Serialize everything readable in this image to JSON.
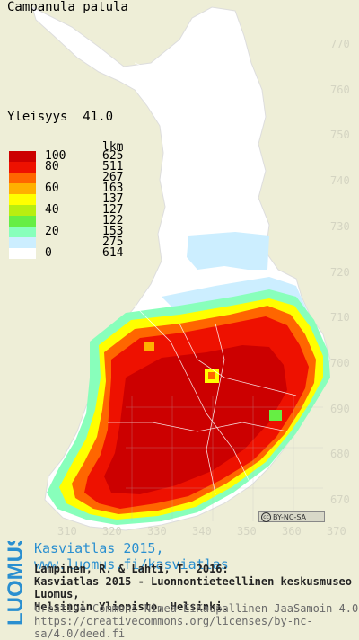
{
  "title": "Campanula patula",
  "frequency": "Yleisyys  41.0",
  "legend": {
    "count_header": "lkm",
    "rows": [
      {
        "label": "100",
        "count": "625",
        "color": "#cc0000"
      },
      {
        "label": "80",
        "count": "511",
        "color": "#ee1100"
      },
      {
        "label": "",
        "count": "267",
        "color": "#ff6600"
      },
      {
        "label": "60",
        "count": "163",
        "color": "#ffb000"
      },
      {
        "label": "",
        "count": "137",
        "color": "#ffff00"
      },
      {
        "label": "40",
        "count": "127",
        "color": "#b8ee10"
      },
      {
        "label": "",
        "count": "122",
        "color": "#66ee44"
      },
      {
        "label": "20",
        "count": "153",
        "color": "#88ffbb"
      },
      {
        "label": "",
        "count": "275",
        "color": "#cceeff"
      },
      {
        "label": "0",
        "count": "614",
        "color": "#ffffff"
      }
    ]
  },
  "y_axis": [
    "770",
    "760",
    "750",
    "740",
    "730",
    "720",
    "710",
    "700",
    "690",
    "680",
    "670"
  ],
  "x_axis": [
    "310",
    "320",
    "330",
    "340",
    "350",
    "360",
    "370"
  ],
  "license_badge": "BY-NC-SA",
  "footer": {
    "logo": "LUOMUS",
    "link": "Kasviatlas 2015, www.luomus.fi/kasviatlas",
    "citation1": "Lampinen, R. & Lahti, T. 2016:",
    "citation2": "Kasviatlas 2015 - Luonnontieteellinen keskusmuseo Luomus,",
    "citation3": "Helsingin Yliopisto, Helsinki.",
    "license1": "Creative Commons Nimeä-EiKaupallinen-JaaSamoin 4.0",
    "license2": "https://creativecommons.org/licenses/by-nc-sa/4.0/deed.fi"
  }
}
